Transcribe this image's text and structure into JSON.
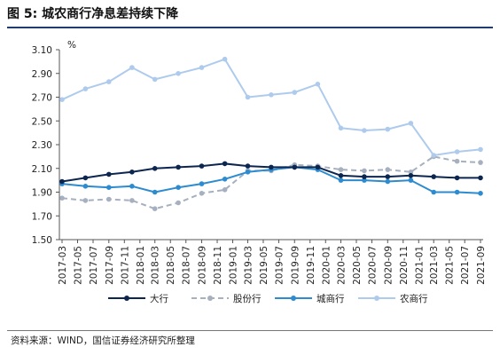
{
  "figure": {
    "title": "图 5:  城农商行净息差持续下降",
    "source": "资料来源：WIND，国信证券经济研究所整理"
  },
  "chart_data": {
    "type": "line",
    "unit_label": "%",
    "ylim": [
      1.5,
      3.1
    ],
    "yticks": [
      "3.10",
      "2.90",
      "2.70",
      "2.50",
      "2.30",
      "2.10",
      "1.90",
      "1.70",
      "1.50"
    ],
    "grid": false,
    "legend_position": "bottom",
    "categories": [
      "2017-03",
      "2017-05",
      "2017-07",
      "2017-09",
      "2017-11",
      "2018-01",
      "2018-03",
      "2018-05",
      "2018-07",
      "2018-09",
      "2018-11",
      "2019-01",
      "2019-03",
      "2019-05",
      "2019-07",
      "2019-09",
      "2019-11",
      "2020-01",
      "2020-03",
      "2020-05",
      "2020-07",
      "2020-09",
      "2020-11",
      "2021-01",
      "2021-03",
      "2021-05",
      "2021-07",
      "2021-09"
    ],
    "x": [
      "2017-03",
      "2017-06",
      "2017-09",
      "2017-12",
      "2018-03",
      "2018-06",
      "2018-09",
      "2018-12",
      "2019-03",
      "2019-06",
      "2019-09",
      "2019-12",
      "2020-03",
      "2020-06",
      "2020-09",
      "2020-12",
      "2021-03",
      "2021-06",
      "2021-09"
    ],
    "series": [
      {
        "name": "大行",
        "color": "#0d2650",
        "dash": "solid",
        "marker": "circle",
        "values": [
          1.99,
          2.02,
          2.05,
          2.07,
          2.1,
          2.11,
          2.12,
          2.14,
          2.12,
          2.11,
          2.11,
          2.11,
          2.04,
          2.03,
          2.03,
          2.04,
          2.03,
          2.02,
          2.02
        ]
      },
      {
        "name": "股份行",
        "color": "#a6b0bf",
        "dash": "dashed",
        "marker": "circle",
        "values": [
          1.85,
          1.83,
          1.84,
          1.83,
          1.76,
          1.81,
          1.89,
          1.92,
          2.08,
          2.08,
          2.13,
          2.12,
          2.09,
          2.08,
          2.09,
          2.07,
          2.2,
          2.16,
          2.15
        ]
      },
      {
        "name": "城商行",
        "color": "#2d8bd0",
        "dash": "solid",
        "marker": "circle",
        "values": [
          1.97,
          1.95,
          1.94,
          1.95,
          1.9,
          1.94,
          1.97,
          2.01,
          2.07,
          2.09,
          2.11,
          2.09,
          2.0,
          2.0,
          1.99,
          2.0,
          1.9,
          1.9,
          1.89
        ]
      },
      {
        "name": "农商行",
        "color": "#aecbed",
        "dash": "solid",
        "marker": "circle",
        "values": [
          2.68,
          2.77,
          2.83,
          2.95,
          2.85,
          2.9,
          2.95,
          3.02,
          2.7,
          2.72,
          2.74,
          2.81,
          2.44,
          2.42,
          2.43,
          2.48,
          2.21,
          2.24,
          2.26
        ]
      }
    ]
  }
}
